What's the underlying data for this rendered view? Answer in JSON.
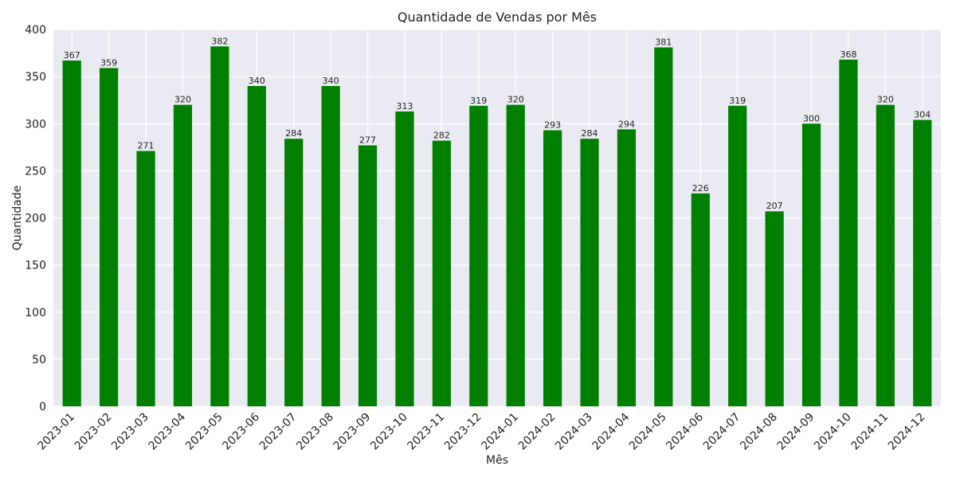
{
  "chart_data": {
    "type": "bar",
    "title": "Quantidade de Vendas por Mês",
    "xlabel": "Mês",
    "ylabel": "Quantidade",
    "ylim": [
      0,
      400
    ],
    "yticks": [
      0,
      50,
      100,
      150,
      200,
      250,
      300,
      350,
      400
    ],
    "grid": true,
    "bar_color": "#008000",
    "background_color": "#eaeaf2",
    "categories": [
      "2023-01",
      "2023-02",
      "2023-03",
      "2023-04",
      "2023-05",
      "2023-06",
      "2023-07",
      "2023-08",
      "2023-09",
      "2023-10",
      "2023-11",
      "2023-12",
      "2024-01",
      "2024-02",
      "2024-03",
      "2024-04",
      "2024-05",
      "2024-06",
      "2024-07",
      "2024-08",
      "2024-09",
      "2024-10",
      "2024-11",
      "2024-12"
    ],
    "values": [
      367,
      359,
      271,
      320,
      382,
      340,
      284,
      340,
      277,
      313,
      282,
      319,
      320,
      293,
      284,
      294,
      381,
      226,
      319,
      207,
      300,
      368,
      320,
      304
    ]
  }
}
